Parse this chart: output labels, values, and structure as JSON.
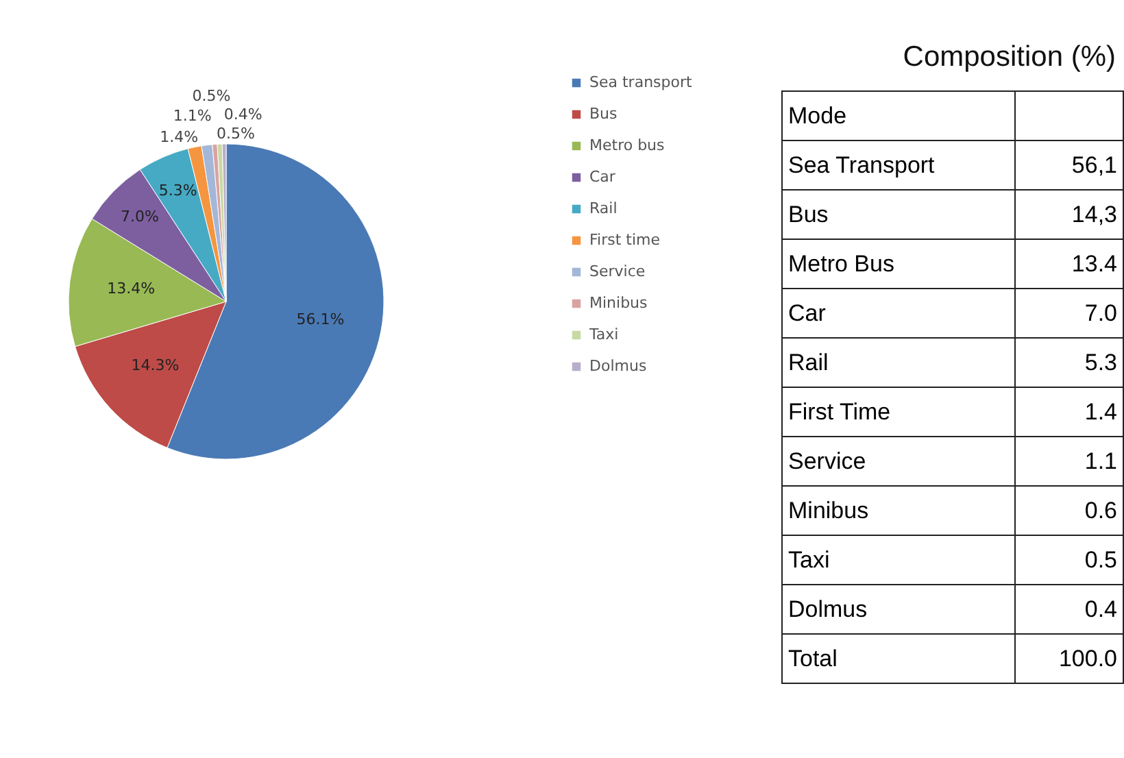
{
  "chart_data": [
    {
      "type": "pie",
      "categories": [
        "Sea transport",
        "Bus",
        "Metro bus",
        "Car",
        "Rail",
        "First time",
        "Service",
        "Minibus",
        "Taxi",
        "Dolmus"
      ],
      "values": [
        56.1,
        14.3,
        13.4,
        7.0,
        5.3,
        1.4,
        1.1,
        0.5,
        0.5,
        0.4
      ],
      "colors": [
        "#4a7ab5",
        "#be4b48",
        "#98b954",
        "#7d5fa0",
        "#46aac4",
        "#f59540",
        "#a3b7d9",
        "#d9a3a2",
        "#c8d9a4",
        "#b8aecb"
      ],
      "value_labels": [
        "56.1%",
        "14.3%",
        "13.4%",
        "7.0%",
        "5.3%",
        "1.4%",
        "1.1%",
        "0.5%",
        "0.5%",
        "0.4%"
      ],
      "legend": "right"
    },
    {
      "type": "other",
      "title": "Composition (%)",
      "annotations": [
        "Mode",
        "Sea Transport",
        "56,1",
        "Bus",
        "14,3",
        "Metro Bus",
        "13.4",
        "Car",
        "7.0",
        "Rail",
        "5.3",
        "First Time",
        "1.4",
        "Service",
        "1.1",
        "Minibus",
        "0.6",
        "Taxi",
        "0.5",
        "Dolmus",
        "0.4",
        "Total",
        "100.0"
      ]
    }
  ]
}
